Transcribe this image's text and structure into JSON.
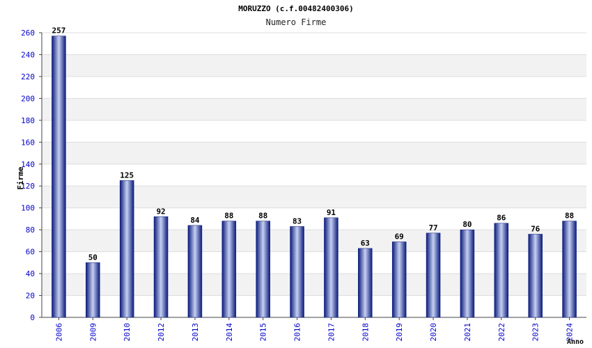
{
  "chart_data": {
    "type": "bar",
    "title": "MORUZZO (c.f.00482400306)",
    "subtitle": "Numero Firme",
    "ylabel": "Firme",
    "xlabel": "Anno",
    "ylim": [
      0,
      260
    ],
    "yticks": [
      0,
      20,
      40,
      60,
      80,
      100,
      120,
      140,
      160,
      180,
      200,
      220,
      240,
      260
    ],
    "categories": [
      "2006",
      "2009",
      "2010",
      "2012",
      "2013",
      "2014",
      "2015",
      "2016",
      "2017",
      "2018",
      "2019",
      "2020",
      "2021",
      "2022",
      "2023",
      "2024"
    ],
    "values": [
      257,
      50,
      125,
      92,
      84,
      88,
      88,
      83,
      91,
      63,
      69,
      77,
      80,
      86,
      76,
      88
    ],
    "grid": true,
    "band_color": "#f2f2f2",
    "bar_color_dark": "#0a1a7a",
    "bar_color_light": "#c6d0f2",
    "tick_label_color": "#0000cc"
  }
}
